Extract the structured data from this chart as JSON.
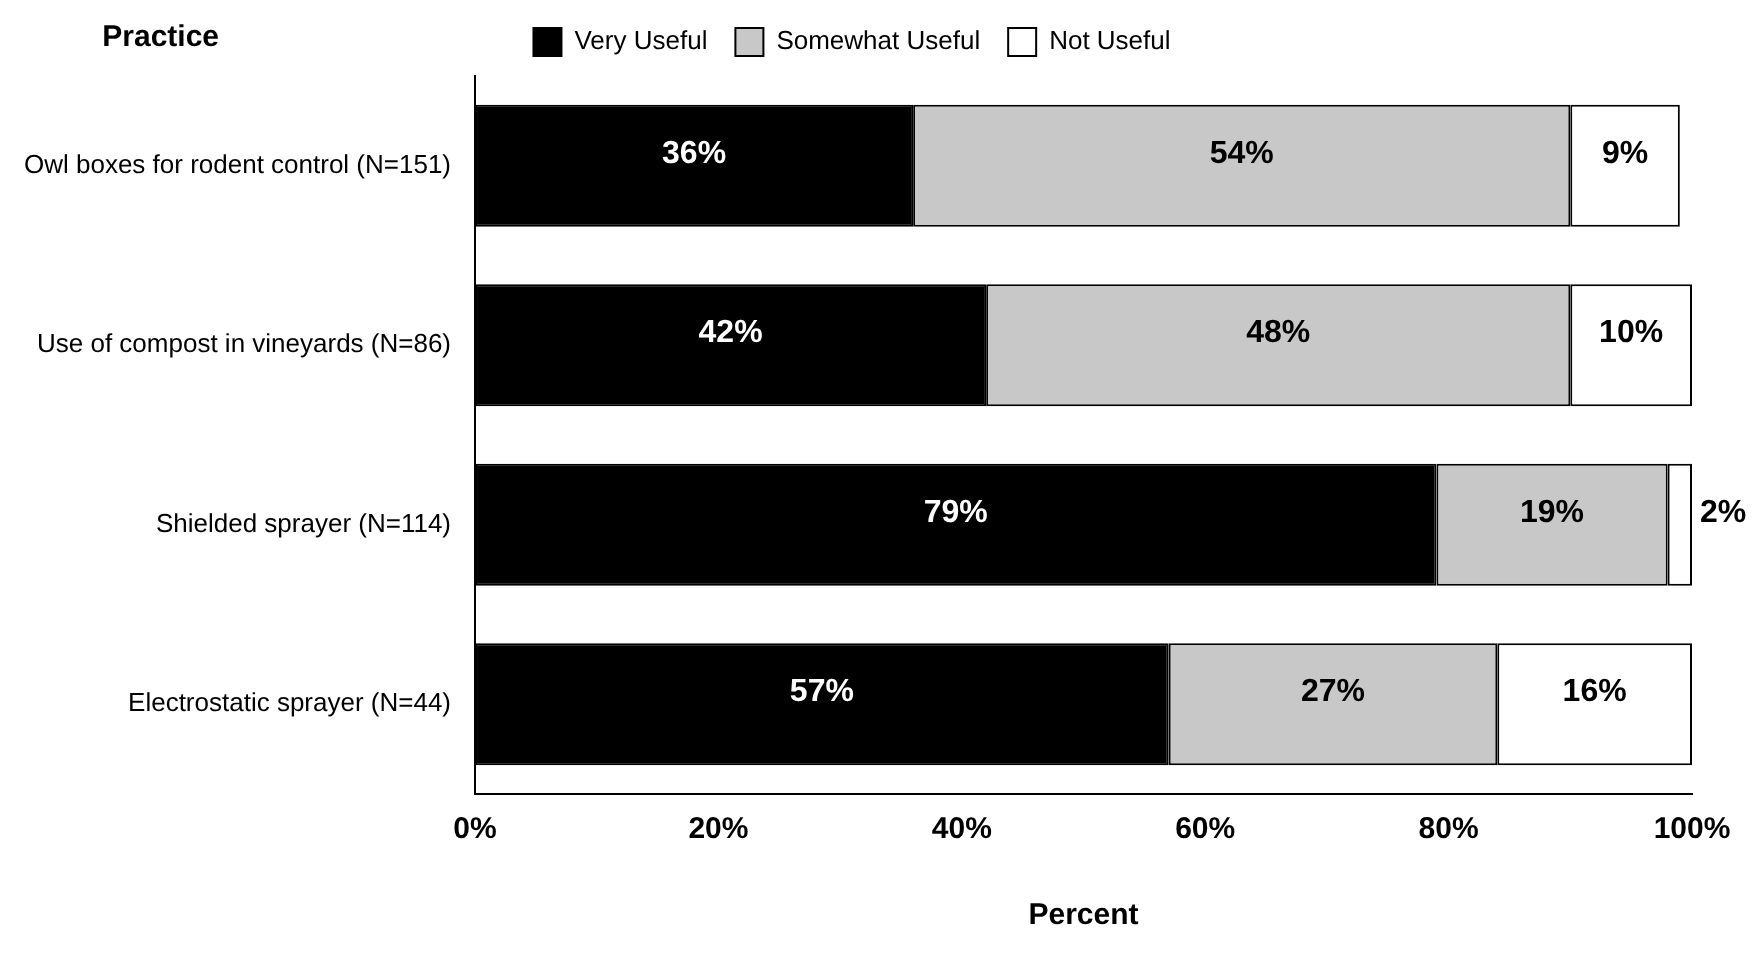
{
  "chart_data": {
    "type": "bar",
    "orientation": "horizontal",
    "stacked": true,
    "ylabel": "Practice",
    "xlabel": "Percent",
    "categories": [
      "Owl boxes for rodent control (N=151)",
      "Use of compost in vineyards (N=86)",
      "Shielded sprayer (N=114)",
      "Electrostatic sprayer (N=44)"
    ],
    "series": [
      {
        "name": "Very Useful",
        "color": "#000000",
        "values": [
          36,
          42,
          79,
          57
        ],
        "value_labels": [
          "36%",
          "42%",
          "79%",
          "57%"
        ]
      },
      {
        "name": "Somewhat Useful",
        "color": "#c8c8c8",
        "values": [
          54,
          48,
          19,
          27
        ],
        "value_labels": [
          "54%",
          "48%",
          "19%",
          "27%"
        ]
      },
      {
        "name": "Not Useful",
        "color": "#ffffff",
        "values": [
          9,
          10,
          2,
          16
        ],
        "value_labels": [
          "9%",
          "10%",
          "2%",
          "16%"
        ]
      }
    ],
    "xlim": [
      0,
      100
    ],
    "xticks": [
      {
        "value": 0,
        "label": "0%"
      },
      {
        "value": 20,
        "label": "20%"
      },
      {
        "value": 40,
        "label": "40%"
      },
      {
        "value": 60,
        "label": "60%"
      },
      {
        "value": 80,
        "label": "80%"
      },
      {
        "value": 100,
        "label": "100%"
      }
    ],
    "grid": false,
    "legend": "top"
  }
}
